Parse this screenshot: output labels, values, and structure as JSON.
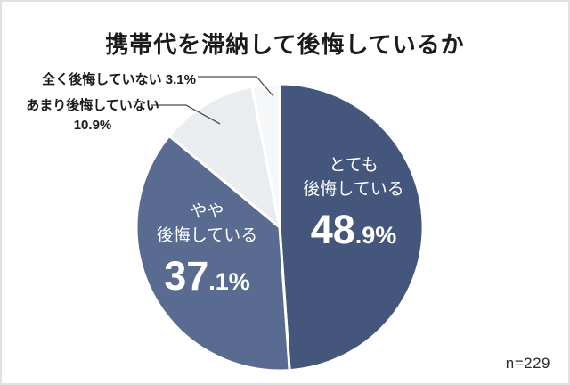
{
  "title": "携帯代を滞納して後悔しているか",
  "chart_data": {
    "type": "pie",
    "title": "携帯代を滞納して後悔しているか",
    "start_angle_deg": 0,
    "direction": "clockwise",
    "legend_position": "none",
    "sample_size_label": "n=229",
    "slice_border_color": "#ffffff",
    "slices": [
      {
        "label": "とても後悔している",
        "value": 48.9,
        "color": "#45567d",
        "text_color": "#ffffff"
      },
      {
        "label": "やや後悔している",
        "value": 37.1,
        "color": "#5a6b91",
        "text_color": "#ffffff"
      },
      {
        "label": "あまり後悔していない",
        "value": 10.9,
        "color": "#eaedf0",
        "text_color": "#1a1a1a"
      },
      {
        "label": "全く後悔していない",
        "value": 3.1,
        "color": "#f6f7f9",
        "text_color": "#1a1a1a"
      }
    ]
  },
  "slice_labels": {
    "very": {
      "line1": "とても",
      "line2": "後悔している",
      "pct_main": "48",
      "pct_sub": ".9%"
    },
    "somewhat": {
      "line1": "やや",
      "line2": "後悔している",
      "pct_main": "37",
      "pct_sub": ".1%"
    }
  },
  "callouts": {
    "not_at_all": {
      "text": "全く後悔していない 3.1%"
    },
    "not_much": {
      "line1": "あまり後悔していない",
      "line2": "10.9%"
    }
  },
  "footer": {
    "sample_size": "n=229"
  }
}
